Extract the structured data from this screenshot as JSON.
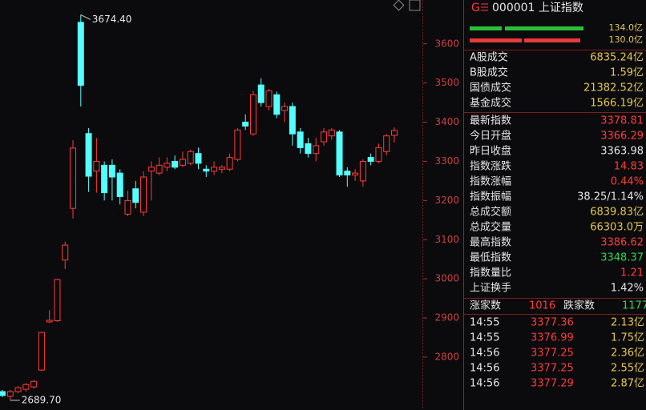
{
  "chart_data": {
    "type": "candlestick",
    "ylim": [
      2665,
      3712
    ],
    "yticks": [
      2800,
      2900,
      3000,
      3100,
      3200,
      3300,
      3400,
      3500,
      3600
    ],
    "up_color": "#ff3b3b",
    "down_color": "#54ffff",
    "annotations": [
      {
        "value": 3674.4,
        "label": "3674.40"
      },
      {
        "value": 2689.7,
        "label": "2689.70"
      }
    ],
    "candles": [
      {
        "open": 2712,
        "close": 2702,
        "high": 2716,
        "low": 2698
      },
      {
        "open": 2700,
        "close": 2712,
        "high": 2716,
        "low": 2689.7
      },
      {
        "open": 2712,
        "close": 2722,
        "high": 2726,
        "low": 2708
      },
      {
        "open": 2718,
        "close": 2730,
        "high": 2734,
        "low": 2712
      },
      {
        "open": 2724,
        "close": 2738,
        "high": 2742,
        "low": 2720
      },
      {
        "open": 2767,
        "close": 2863,
        "high": 2863,
        "low": 2765
      },
      {
        "open": 2890,
        "close": 2894,
        "high": 2920,
        "low": 2887
      },
      {
        "open": 2893,
        "close": 2998,
        "high": 3000,
        "low": 2890
      },
      {
        "open": 3048,
        "close": 3086,
        "high": 3095,
        "low": 3025
      },
      {
        "open": 3180,
        "close": 3334,
        "high": 3354,
        "low": 3154
      },
      {
        "open": 3655,
        "close": 3494,
        "high": 3674.4,
        "low": 3440
      },
      {
        "open": 3371,
        "close": 3262,
        "high": 3385,
        "low": 3222
      },
      {
        "open": 3275,
        "close": 3300,
        "high": 3360,
        "low": 3220
      },
      {
        "open": 3290,
        "close": 3220,
        "high": 3300,
        "low": 3200
      },
      {
        "open": 3290,
        "close": 3260,
        "high": 3305,
        "low": 3200
      },
      {
        "open": 3270,
        "close": 3210,
        "high": 3280,
        "low": 3190
      },
      {
        "open": 3165,
        "close": 3200,
        "high": 3225,
        "low": 3160
      },
      {
        "open": 3230,
        "close": 3195,
        "high": 3250,
        "low": 3180
      },
      {
        "open": 3170,
        "close": 3260,
        "high": 3275,
        "low": 3160
      },
      {
        "open": 3275,
        "close": 3285,
        "high": 3300,
        "low": 3200
      },
      {
        "open": 3270,
        "close": 3290,
        "high": 3310,
        "low": 3265
      },
      {
        "open": 3285,
        "close": 3295,
        "high": 3310,
        "low": 3275
      },
      {
        "open": 3300,
        "close": 3285,
        "high": 3315,
        "low": 3280
      },
      {
        "open": 3290,
        "close": 3305,
        "high": 3325,
        "low": 3285
      },
      {
        "open": 3295,
        "close": 3325,
        "high": 3330,
        "low": 3290
      },
      {
        "open": 3320,
        "close": 3295,
        "high": 3335,
        "low": 3280
      },
      {
        "open": 3280,
        "close": 3275,
        "high": 3290,
        "low": 3260
      },
      {
        "open": 3275,
        "close": 3285,
        "high": 3300,
        "low": 3265
      },
      {
        "open": 3280,
        "close": 3285,
        "high": 3290,
        "low": 3270
      },
      {
        "open": 3280,
        "close": 3310,
        "high": 3320,
        "low": 3275
      },
      {
        "open": 3305,
        "close": 3380,
        "high": 3385,
        "low": 3300
      },
      {
        "open": 3400,
        "close": 3390,
        "high": 3420,
        "low": 3380
      },
      {
        "open": 3370,
        "close": 3470,
        "high": 3480,
        "low": 3365
      },
      {
        "open": 3495,
        "close": 3450,
        "high": 3512,
        "low": 3440
      },
      {
        "open": 3440,
        "close": 3480,
        "high": 3485,
        "low": 3430
      },
      {
        "open": 3470,
        "close": 3420,
        "high": 3478,
        "low": 3410
      },
      {
        "open": 3430,
        "close": 3440,
        "high": 3450,
        "low": 3400
      },
      {
        "open": 3440,
        "close": 3370,
        "high": 3450,
        "low": 3340
      },
      {
        "open": 3375,
        "close": 3335,
        "high": 3385,
        "low": 3320
      },
      {
        "open": 3345,
        "close": 3320,
        "high": 3360,
        "low": 3310
      },
      {
        "open": 3320,
        "close": 3340,
        "high": 3360,
        "low": 3300
      },
      {
        "open": 3350,
        "close": 3375,
        "high": 3385,
        "low": 3340
      },
      {
        "open": 3365,
        "close": 3380,
        "high": 3385,
        "low": 3355
      },
      {
        "open": 3375,
        "close": 3265,
        "high": 3380,
        "low": 3260
      },
      {
        "open": 3275,
        "close": 3265,
        "high": 3285,
        "low": 3235
      },
      {
        "open": 3265,
        "close": 3270,
        "high": 3280,
        "low": 3250
      },
      {
        "open": 3250,
        "close": 3300,
        "high": 3305,
        "low": 3235
      },
      {
        "open": 3310,
        "close": 3300,
        "high": 3320,
        "low": 3290
      },
      {
        "open": 3300,
        "close": 3335,
        "high": 3345,
        "low": 3295
      },
      {
        "open": 3325,
        "close": 3365,
        "high": 3370,
        "low": 3315
      },
      {
        "open": 3366.29,
        "close": 3378.81,
        "high": 3386.62,
        "low": 3348.37
      }
    ]
  },
  "panel": {
    "marker": "G",
    "title": "000001 上证指数",
    "bars": [
      {
        "label": "134.0亿",
        "color": "#27c03a"
      },
      {
        "label": "130.0亿",
        "color": "#e83a3a"
      }
    ],
    "volume_rows": [
      [
        "A股成交",
        "6835.24亿"
      ],
      [
        "B股成交",
        "1.59亿"
      ],
      [
        "国债成交",
        "21382.52亿"
      ],
      [
        "基金成交",
        "1566.19亿"
      ]
    ],
    "stat_rows": [
      {
        "label": "最新指数",
        "value": "3378.81",
        "color": "#ff3b3b"
      },
      {
        "label": "今日开盘",
        "value": "3366.29",
        "color": "#ff3b3b"
      },
      {
        "label": "昨日收盘",
        "value": "3363.98",
        "color": "#e6e6e6"
      },
      {
        "label": "指数涨跌",
        "value": "14.83",
        "color": "#ff3b3b"
      },
      {
        "label": "指数涨幅",
        "value": "0.44%",
        "color": "#ff3b3b"
      },
      {
        "label": "指数振幅",
        "value": "38.25/1.14%",
        "color": "#e6e6e6"
      },
      {
        "label": "总成交额",
        "value": "6839.83亿",
        "color": "#e6c84a"
      },
      {
        "label": "总成交量",
        "value": "66303.0万",
        "color": "#e6c84a"
      },
      {
        "label": "最高指数",
        "value": "3386.62",
        "color": "#ff3b3b"
      },
      {
        "label": "最低指数",
        "value": "3348.37",
        "color": "#2fd84a"
      },
      {
        "label": "指数量比",
        "value": "1.21",
        "color": "#ff3b3b"
      },
      {
        "label": "上证换手",
        "value": "1.42%",
        "color": "#e6e6e6"
      }
    ],
    "breadth": {
      "up_label": "涨家数",
      "up_value": "1016",
      "down_label": "跌家数",
      "down_value": "1177"
    },
    "ticks": [
      [
        "14:55",
        "3377.36",
        "2.13亿"
      ],
      [
        "14:55",
        "3376.99",
        "1.75亿"
      ],
      [
        "14:56",
        "3377.25",
        "2.36亿"
      ],
      [
        "14:56",
        "3377.25",
        "2.55亿"
      ],
      [
        "14:56",
        "3377.29",
        "2.87亿"
      ]
    ]
  }
}
